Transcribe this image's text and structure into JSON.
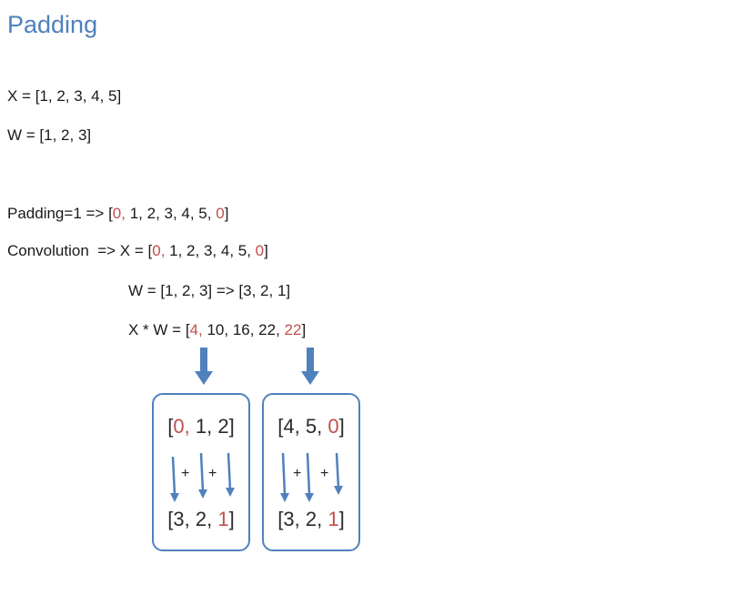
{
  "title": "Padding",
  "x_def": {
    "prefix": "X = [",
    "values": "1, 2, 3, 4, 5",
    "suffix": "]"
  },
  "w_def": "W = [1, 2, 3]",
  "padding_line": {
    "label": "Padding=1 => [",
    "pad_left": "0,",
    "middle": " 1, 2, 3, 4, 5, ",
    "pad_right": "0",
    "close": "]"
  },
  "conv_line": {
    "label": "Convolution  => X = [",
    "pad_left": "0,",
    "middle": " 1, 2, 3, 4, 5, ",
    "pad_right": "0",
    "close": "]"
  },
  "w_flip_line": "W = [1, 2, 3] => [3, 2, 1]",
  "result_line": {
    "label": "X * W = [",
    "first": "4,",
    "middle": " 10, 16, 22, ",
    "last": "22",
    "close": "]"
  },
  "box_left": {
    "top_open": "[",
    "top_red": "0,",
    "top_rest": " 1, 2]",
    "bottom_main": "[3, 2, ",
    "bottom_red": "1",
    "bottom_close": "]",
    "plus1": "+",
    "plus2": "+"
  },
  "box_right": {
    "top_main": "[4, 5, ",
    "top_red": "0",
    "top_close": "]",
    "bottom_main": "[3, 2, ",
    "bottom_red": "1",
    "bottom_close": "]",
    "plus1": "+",
    "plus2": "+"
  },
  "colors": {
    "title": "#4f81bd",
    "highlight": "#c0504d",
    "arrow": "#4f81bd",
    "box_border": "#4f81bd"
  }
}
